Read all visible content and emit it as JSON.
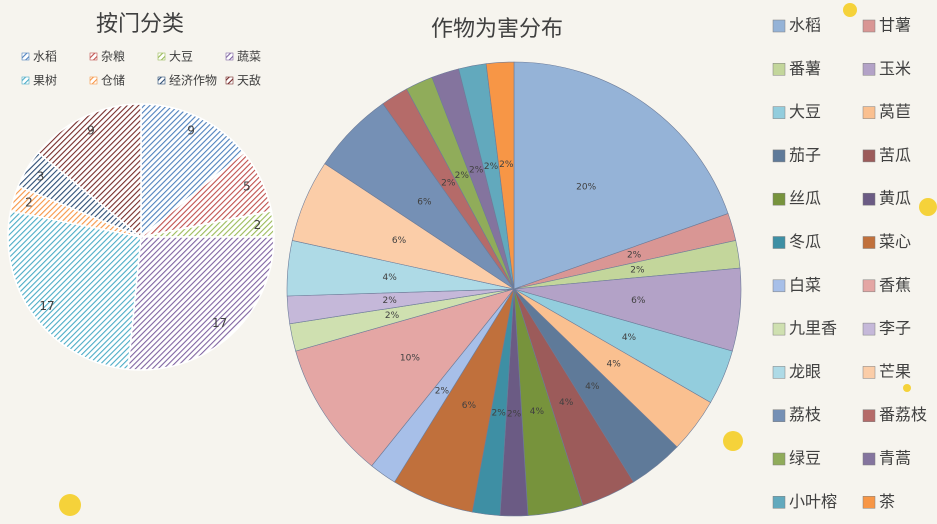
{
  "chart_data": [
    {
      "type": "pie",
      "title": "按门分类",
      "legend": "top",
      "hatch": true,
      "categories": [
        "水稻",
        "杂粮",
        "大豆",
        "蔬菜",
        "果树",
        "仓储",
        "经济作物",
        "天敌"
      ],
      "values": [
        9,
        5,
        2,
        17,
        17,
        2,
        3,
        9
      ],
      "colors": [
        "#4f81bd",
        "#c0504d",
        "#9bbb59",
        "#8064a2",
        "#4bacc6",
        "#f79646",
        "#2c4d75",
        "#772c2a"
      ]
    },
    {
      "type": "pie",
      "title": "作物为害分布",
      "legend": "right",
      "hatch": false,
      "categories": [
        "水稻",
        "甘薯",
        "番薯",
        "玉米",
        "大豆",
        "莴苣",
        "茄子",
        "苦瓜",
        "丝瓜",
        "黄瓜",
        "冬瓜",
        "菜心",
        "白菜",
        "香蕉",
        "九里香",
        "李子",
        "龙眼",
        "芒果",
        "荔枝",
        "番荔枝",
        "绿豆",
        "青蒿",
        "小叶榕",
        "茶"
      ],
      "values": [
        20,
        2,
        2,
        6,
        4,
        4,
        4,
        4,
        4,
        2,
        2,
        6,
        2,
        10,
        2,
        2,
        4,
        6,
        6,
        2,
        2,
        2,
        2,
        2
      ],
      "value_labels": [
        "20%",
        "2%",
        "2%",
        "6%",
        "4%",
        "4%",
        "4%",
        "4%",
        "4%",
        "2%",
        "2%",
        "6%",
        "2%",
        "10%",
        "2%",
        "2%",
        "4%",
        "6%",
        "6%",
        "2%",
        "2%",
        "2%",
        "2%",
        "2%"
      ],
      "colors": [
        "#95b3d7",
        "#d99694",
        "#c3d69b",
        "#b3a2c7",
        "#93cddd",
        "#fac090",
        "#5f7a99",
        "#9c5b5a",
        "#77933c",
        "#6b5b84",
        "#3e8fa4",
        "#c0703c",
        "#a7bfe8",
        "#e4a6a4",
        "#cfe0b0",
        "#c5b8d9",
        "#aedae6",
        "#fbcda8",
        "#7590b5",
        "#b56b69",
        "#90ac5a",
        "#84749e",
        "#62a9bd",
        "#f79646"
      ]
    }
  ]
}
